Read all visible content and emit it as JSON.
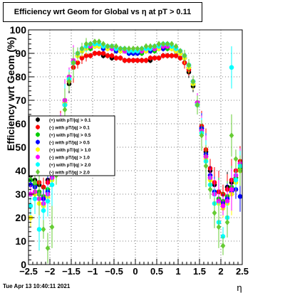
{
  "chart_data": {
    "type": "scatter",
    "title": "Efficiency wrt Geom for Global vs   η at pT > 0.11",
    "xlabel": "η",
    "ylabel": "Efficiency wrt Geom (%)",
    "xlim": [
      -2.5,
      2.5
    ],
    "ylim": [
      0,
      100
    ],
    "x_ticks": [
      "−2.5",
      "−2",
      "−1.5",
      "−1",
      "−0.5",
      "0",
      "0.5",
      "1",
      "1.5",
      "2",
      "2.5"
    ],
    "x_tick_values": [
      -2.5,
      -2,
      -1.5,
      -1,
      -0.5,
      0,
      0.5,
      1,
      1.5,
      2,
      2.5
    ],
    "y_ticks": [
      "0",
      "10",
      "20",
      "30",
      "40",
      "50",
      "60",
      "70",
      "80",
      "90",
      "100"
    ],
    "y_tick_values": [
      0,
      10,
      20,
      30,
      40,
      50,
      60,
      70,
      80,
      90,
      100
    ],
    "grid": true,
    "legend_position": "left-middle",
    "series": [
      {
        "name": "(+) with pT/|q| > 0.1",
        "color": "#000000",
        "marker": "circle",
        "x": [
          -2.45,
          -2.35,
          -2.25,
          -2.15,
          -2.05,
          -1.95,
          -1.85,
          -1.75,
          -1.65,
          -1.55,
          -1.45,
          -1.35,
          -1.25,
          -1.15,
          -1.05,
          -0.95,
          -0.85,
          -0.75,
          -0.65,
          -0.55,
          -0.45,
          -0.35,
          -0.25,
          -0.15,
          -0.05,
          0.05,
          0.15,
          0.25,
          0.35,
          0.45,
          0.55,
          0.65,
          0.75,
          0.85,
          0.95,
          1.05,
          1.15,
          1.25,
          1.35,
          1.45,
          1.55,
          1.65,
          1.75,
          1.85,
          1.95,
          2.05,
          2.15,
          2.25,
          2.35,
          2.45
        ],
        "y": [
          38,
          36,
          34,
          33,
          36,
          40,
          48,
          58,
          68,
          77,
          84,
          86,
          88,
          89,
          89,
          90,
          90,
          89,
          89,
          88,
          88,
          88,
          87,
          87,
          87,
          87,
          87,
          87,
          87,
          88,
          88,
          89,
          89,
          89,
          89,
          88,
          86,
          82,
          76,
          68,
          58,
          48,
          40,
          34,
          31,
          30,
          33,
          35,
          37,
          40
        ]
      },
      {
        "name": "(-) with pT/|q| > 0.1",
        "color": "#ff0000",
        "marker": "circle",
        "x": [
          -2.45,
          -2.35,
          -2.25,
          -2.15,
          -2.05,
          -1.95,
          -1.85,
          -1.75,
          -1.65,
          -1.55,
          -1.45,
          -1.35,
          -1.25,
          -1.15,
          -1.05,
          -0.95,
          -0.85,
          -0.75,
          -0.65,
          -0.55,
          -0.45,
          -0.35,
          -0.25,
          -0.15,
          -0.05,
          0.05,
          0.15,
          0.25,
          0.35,
          0.45,
          0.55,
          0.65,
          0.75,
          0.85,
          0.95,
          1.05,
          1.15,
          1.25,
          1.35,
          1.45,
          1.55,
          1.65,
          1.75,
          1.85,
          1.95,
          2.05,
          2.15,
          2.25,
          2.35,
          2.45
        ],
        "y": [
          42,
          39,
          35,
          33,
          35,
          41,
          49,
          59,
          69,
          78,
          84,
          86,
          88,
          89,
          89,
          90,
          90,
          90,
          89,
          89,
          88,
          88,
          87,
          87,
          87,
          87,
          87,
          87,
          88,
          88,
          88,
          89,
          89,
          89,
          89,
          88,
          86,
          83,
          77,
          69,
          59,
          49,
          41,
          35,
          31,
          30,
          32,
          36,
          40,
          44
        ]
      },
      {
        "name": "(+) with pT/|q| > 0.5",
        "color": "#00cc00",
        "marker": "circle",
        "x": [
          -2.45,
          -2.35,
          -2.25,
          -2.15,
          -2.05,
          -1.95,
          -1.85,
          -1.75,
          -1.65,
          -1.55,
          -1.45,
          -1.35,
          -1.25,
          -1.15,
          -1.05,
          -0.95,
          -0.85,
          -0.75,
          -0.65,
          -0.55,
          -0.45,
          -0.35,
          -0.25,
          -0.15,
          -0.05,
          0.05,
          0.15,
          0.25,
          0.35,
          0.45,
          0.55,
          0.65,
          0.75,
          0.85,
          0.95,
          1.05,
          1.15,
          1.25,
          1.35,
          1.45,
          1.55,
          1.65,
          1.75,
          1.85,
          1.95,
          2.05,
          2.15,
          2.25,
          2.35,
          2.45
        ],
        "y": [
          36,
          34,
          31,
          29,
          32,
          38,
          47,
          58,
          70,
          79,
          86,
          89,
          91,
          92,
          92,
          93,
          93,
          92,
          92,
          92,
          91,
          91,
          91,
          90,
          90,
          90,
          90,
          91,
          91,
          91,
          92,
          92,
          92,
          92,
          91,
          90,
          88,
          84,
          77,
          68,
          57,
          46,
          37,
          31,
          28,
          27,
          29,
          33,
          37,
          41
        ]
      },
      {
        "name": "(-) with pT/|q| > 0.5",
        "color": "#0000ff",
        "marker": "circle",
        "x": [
          -2.45,
          -2.35,
          -2.25,
          -2.15,
          -2.05,
          -1.95,
          -1.85,
          -1.75,
          -1.65,
          -1.55,
          -1.45,
          -1.35,
          -1.25,
          -1.15,
          -1.05,
          -0.95,
          -0.85,
          -0.75,
          -0.65,
          -0.55,
          -0.45,
          -0.35,
          -0.25,
          -0.15,
          -0.05,
          0.05,
          0.15,
          0.25,
          0.35,
          0.45,
          0.55,
          0.65,
          0.75,
          0.85,
          0.95,
          1.05,
          1.15,
          1.25,
          1.35,
          1.45,
          1.55,
          1.65,
          1.75,
          1.85,
          1.95,
          2.05,
          2.15,
          2.25,
          2.35,
          2.45
        ],
        "y": [
          34,
          33,
          30,
          28,
          31,
          37,
          46,
          57,
          69,
          79,
          86,
          89,
          91,
          92,
          93,
          93,
          93,
          92,
          92,
          92,
          91,
          91,
          91,
          90,
          90,
          90,
          91,
          91,
          91,
          92,
          92,
          92,
          93,
          92,
          91,
          90,
          88,
          84,
          78,
          69,
          58,
          47,
          38,
          31,
          27,
          26,
          28,
          31,
          32,
          29
        ]
      },
      {
        "name": "(+) with pT/|q| > 1.0",
        "color": "#ffff00",
        "marker": "circle",
        "x": [
          -2.45,
          -2.35,
          -2.25,
          -2.15,
          -2.05,
          -1.95,
          -1.85,
          -1.75,
          -1.65,
          -1.55,
          -1.45,
          -1.35,
          -1.25,
          -1.15,
          -1.05,
          -0.95,
          -0.85,
          -0.75,
          -0.65,
          -0.55,
          -0.45,
          -0.35,
          -0.25,
          -0.15,
          -0.05,
          0.05,
          0.15,
          0.25,
          0.35,
          0.45,
          0.55,
          0.65,
          0.75,
          0.85,
          0.95,
          1.05,
          1.15,
          1.25,
          1.35,
          1.45,
          1.55,
          1.65,
          1.75,
          1.85,
          1.95,
          2.05,
          2.15,
          2.25,
          2.35,
          2.45
        ],
        "y": [
          20,
          30,
          26,
          25,
          29,
          36,
          46,
          57,
          69,
          79,
          86,
          89,
          91,
          92,
          93,
          93,
          93,
          93,
          92,
          92,
          92,
          91,
          91,
          91,
          91,
          91,
          91,
          91,
          92,
          92,
          92,
          93,
          93,
          92,
          91,
          90,
          88,
          84,
          77,
          68,
          56,
          45,
          36,
          30,
          26,
          24,
          26,
          30,
          35,
          40
        ]
      },
      {
        "name": "(-) with pT/|q| > 1.0",
        "color": "#ff00ff",
        "marker": "circle",
        "x": [
          -2.45,
          -2.35,
          -2.25,
          -2.15,
          -2.05,
          -1.95,
          -1.85,
          -1.75,
          -1.65,
          -1.55,
          -1.45,
          -1.35,
          -1.25,
          -1.15,
          -1.05,
          -0.95,
          -0.85,
          -0.75,
          -0.65,
          -0.55,
          -0.45,
          -0.35,
          -0.25,
          -0.15,
          -0.05,
          0.05,
          0.15,
          0.25,
          0.35,
          0.45,
          0.55,
          0.65,
          0.75,
          0.85,
          0.95,
          1.05,
          1.15,
          1.25,
          1.35,
          1.45,
          1.55,
          1.65,
          1.75,
          1.85,
          1.95,
          2.05,
          2.15,
          2.25,
          2.35,
          2.45
        ],
        "y": [
          30,
          31,
          28,
          26,
          30,
          37,
          47,
          58,
          70,
          80,
          87,
          90,
          92,
          93,
          93,
          94,
          94,
          93,
          93,
          92,
          92,
          92,
          91,
          91,
          91,
          91,
          91,
          92,
          92,
          92,
          93,
          93,
          93,
          93,
          92,
          91,
          89,
          85,
          78,
          69,
          57,
          46,
          37,
          30,
          27,
          25,
          27,
          32,
          38,
          43
        ]
      },
      {
        "name": "(+) with pT/|q| > 2.0",
        "color": "#00ffff",
        "marker": "circle",
        "x": [
          -2.45,
          -2.35,
          -2.25,
          -2.15,
          -2.05,
          -1.95,
          -1.85,
          -1.75,
          -1.65,
          -1.55,
          -1.45,
          -1.35,
          -1.25,
          -1.15,
          -1.05,
          -0.95,
          -0.85,
          -0.75,
          -0.65,
          -0.55,
          -0.45,
          -0.35,
          -0.25,
          -0.15,
          -0.05,
          0.05,
          0.15,
          0.25,
          0.35,
          0.45,
          0.55,
          0.65,
          0.75,
          0.85,
          0.95,
          1.05,
          1.15,
          1.25,
          1.35,
          1.45,
          1.55,
          1.65,
          1.75,
          1.85,
          1.95,
          2.05,
          2.15,
          2.25,
          2.35,
          2.45
        ],
        "y": [
          25,
          28,
          15,
          23,
          27,
          34,
          44,
          56,
          68,
          79,
          86,
          90,
          92,
          93,
          94,
          94,
          94,
          93,
          93,
          93,
          92,
          92,
          92,
          91,
          91,
          91,
          92,
          92,
          92,
          93,
          93,
          94,
          94,
          93,
          92,
          91,
          89,
          85,
          78,
          68,
          56,
          44,
          34,
          26,
          18,
          12,
          20,
          84,
          36,
          42
        ]
      },
      {
        "name": "(-) with pT/|q| > 2.0",
        "color": "#66cc33",
        "marker": "diamond",
        "x": [
          -2.45,
          -2.35,
          -2.25,
          -2.15,
          -2.05,
          -1.95,
          -1.85,
          -1.75,
          -1.65,
          -1.55,
          -1.45,
          -1.35,
          -1.25,
          -1.15,
          -1.05,
          -0.95,
          -0.85,
          -0.75,
          -0.65,
          -0.55,
          -0.45,
          -0.35,
          -0.25,
          -0.15,
          -0.05,
          0.05,
          0.15,
          0.25,
          0.35,
          0.45,
          0.55,
          0.65,
          0.75,
          0.85,
          0.95,
          1.05,
          1.15,
          1.25,
          1.35,
          1.45,
          1.55,
          1.65,
          1.75,
          1.85,
          1.95,
          2.05,
          2.15,
          2.25,
          2.35,
          2.45
        ],
        "y": [
          40,
          35,
          30,
          15,
          7,
          16,
          38,
          55,
          66,
          78,
          86,
          90,
          92,
          94,
          94,
          95,
          95,
          94,
          93,
          93,
          93,
          92,
          92,
          92,
          92,
          92,
          92,
          93,
          93,
          93,
          94,
          94,
          94,
          94,
          93,
          91,
          89,
          85,
          78,
          68,
          55,
          42,
          32,
          22,
          16,
          8,
          18,
          55,
          45,
          40
        ]
      }
    ]
  },
  "timestamp": "Tue Apr 13 10:40:11 2021"
}
